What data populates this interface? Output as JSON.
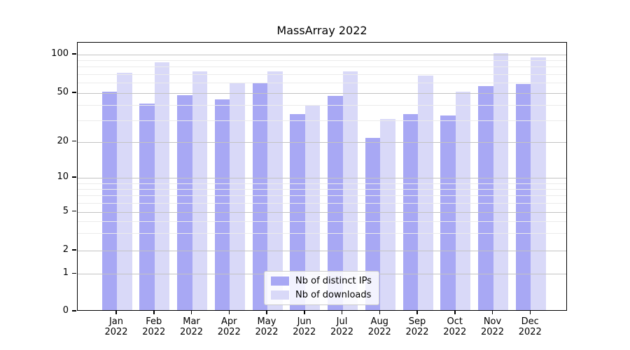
{
  "title": "MassArray 2022",
  "legend": {
    "position": "lower center",
    "items": [
      {
        "label": "Nb of distinct IPs",
        "color": "#a8a8f4"
      },
      {
        "label": "Nb of downloads",
        "color": "#d9d9f8"
      }
    ]
  },
  "chart_data": {
    "type": "bar",
    "title": "MassArray 2022",
    "xlabel": "",
    "ylabel": "",
    "yscale": "symlog",
    "grid": "both",
    "yticks": [
      0,
      1,
      2,
      5,
      10,
      20,
      50,
      100
    ],
    "minor_yticks": [
      3,
      4,
      6,
      7,
      8,
      9,
      30,
      40,
      60,
      70,
      80,
      90
    ],
    "ylim": [
      0,
      125
    ],
    "categories": [
      "Jan 2022",
      "Feb 2022",
      "Mar 2022",
      "Apr 2022",
      "May 2022",
      "Jun 2022",
      "Jul 2022",
      "Aug 2022",
      "Sep 2022",
      "Oct 2022",
      "Nov 2022",
      "Dec 2022"
    ],
    "series": [
      {
        "name": "Nb of distinct IPs",
        "color": "#a8a8f4",
        "values": [
          50,
          40,
          47,
          43,
          58,
          33,
          46,
          21,
          33,
          32,
          55,
          57
        ]
      },
      {
        "name": "Nb of downloads",
        "color": "#d9d9f8",
        "values": [
          70,
          85,
          72,
          58,
          72,
          39,
          72,
          30,
          67,
          50,
          100,
          92
        ]
      }
    ]
  }
}
